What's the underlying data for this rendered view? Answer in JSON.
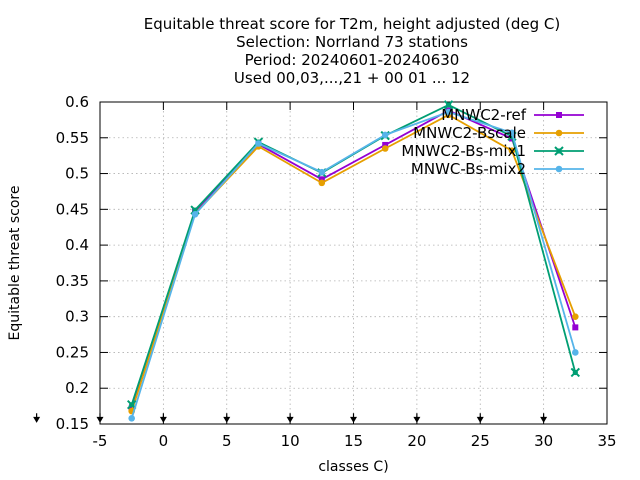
{
  "chart_data": {
    "type": "line",
    "title_lines": [
      "Equitable threat score  for T2m, height adjusted (deg C)",
      "Selection: Norrland     73 stations",
      "Period: 20240601-20240630",
      "Used 00,03,...,21 + 00 01 ... 12"
    ],
    "xlabel": "classes C)",
    "ylabel": "Equitable threat score",
    "xlim": [
      -5,
      35
    ],
    "ylim": [
      0.15,
      0.6
    ],
    "xticks": [
      -5,
      0,
      5,
      10,
      15,
      20,
      25,
      30,
      35
    ],
    "xtick_labels": [
      "-5",
      "0",
      "5",
      "10",
      "15",
      "20",
      "25",
      "30",
      "35"
    ],
    "yticks": [
      0.15,
      0.2,
      0.25,
      0.3,
      0.35,
      0.4,
      0.45,
      0.5,
      0.55,
      0.6
    ],
    "ytick_labels": [
      "0.15",
      "0.2",
      "0.25",
      "0.3",
      "0.35",
      "0.4",
      "0.45",
      "0.5",
      "0.55",
      "0.6"
    ],
    "grid": true,
    "legend_position": "top-right",
    "below_axis_arrows_x": [
      -10,
      -5,
      0,
      5,
      10,
      15,
      20,
      25,
      30
    ],
    "x": [
      -2.5,
      2.5,
      7.5,
      12.5,
      17.5,
      22.5,
      27.5,
      32.5
    ],
    "series": [
      {
        "name": "MNWC2-ref",
        "color": "#9400d3",
        "marker": "square",
        "values": [
          0.172,
          0.447,
          0.541,
          0.492,
          0.54,
          0.588,
          0.549,
          0.285
        ]
      },
      {
        "name": "MNWC2-Bscale",
        "color": "#e69f00",
        "marker": "circle",
        "values": [
          0.168,
          0.444,
          0.538,
          0.487,
          0.535,
          0.582,
          0.532,
          0.3
        ]
      },
      {
        "name": "MNWC2-Bs-mix1",
        "color": "#009e73",
        "marker": "cross",
        "values": [
          0.177,
          0.449,
          0.544,
          0.501,
          0.553,
          0.596,
          0.552,
          0.222
        ]
      },
      {
        "name": "MNWC-Bs-mix2",
        "color": "#56b4e9",
        "marker": "circle",
        "values": [
          0.158,
          0.443,
          0.542,
          0.502,
          0.554,
          0.586,
          0.557,
          0.25
        ]
      }
    ]
  }
}
